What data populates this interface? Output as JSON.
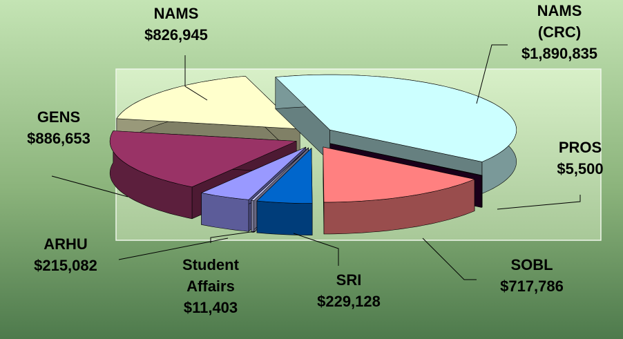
{
  "chart_data": {
    "type": "pie3d",
    "categories": [
      "NAMS (CRC)",
      "PROS",
      "SOBL",
      "SRI",
      "Student Affairs",
      "ARHU",
      "GENS",
      "NAMS"
    ],
    "values": [
      1890835,
      5500,
      717786,
      229128,
      11403,
      215082,
      886653,
      826945
    ],
    "value_labels": [
      "$1,890,835",
      "$5,500",
      "$717,786",
      "$229,128",
      "$11,403",
      "$215,082",
      "$886,653",
      "$826,945"
    ],
    "colors": [
      "#ccffff",
      "#330033",
      "#ff8080",
      "#0066cc",
      "#ccccff",
      "#9999ff",
      "#993366",
      "#ffffcc"
    ]
  }
}
